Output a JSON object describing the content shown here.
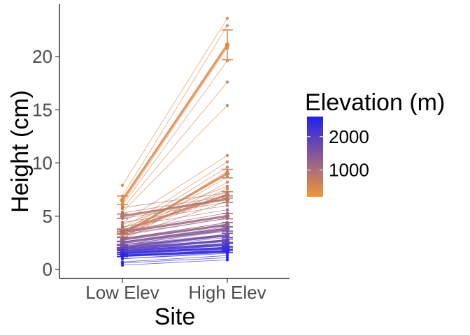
{
  "chart_data": {
    "type": "line",
    "xlabel": "Site",
    "ylabel": "Height (cm)",
    "categories": [
      "Low Elev",
      "High Elev"
    ],
    "ylim": [
      -1,
      24.5
    ],
    "y_ticks": [
      0,
      5,
      10,
      15,
      20
    ],
    "y_tick_labels": [
      "0",
      "5",
      "10",
      "15",
      "20"
    ],
    "grid": false,
    "legend": {
      "title": "Elevation (m)",
      "placement": "right",
      "type": "colorbar",
      "range": [
        200,
        2600
      ],
      "ticks": [
        2000,
        1000
      ],
      "tick_labels": [
        "2000",
        "1000"
      ],
      "color_low": "#f39637",
      "color_high": "#2020f0"
    },
    "groups": [
      {
        "elevation": 450,
        "low": 6.5,
        "high": 21.1,
        "low_se": 0.4,
        "high_se": 1.4,
        "individuals": [
          [
            7.9,
            23.6
          ],
          [
            6.9,
            22.9
          ],
          [
            6.6,
            21.0
          ],
          [
            6.2,
            20.8
          ],
          [
            6.0,
            19.6
          ],
          [
            5.7,
            17.6
          ],
          [
            5.4,
            15.4
          ]
        ]
      },
      {
        "elevation": 550,
        "low": 3.3,
        "high": 9.0,
        "low_se": 0.25,
        "high_se": 0.4,
        "individuals": [
          [
            4.4,
            10.7
          ],
          [
            3.8,
            10.1
          ],
          [
            3.5,
            9.6
          ],
          [
            3.2,
            9.2
          ],
          [
            2.9,
            8.7
          ],
          [
            2.7,
            8.2
          ],
          [
            3.1,
            7.6
          ]
        ]
      },
      {
        "elevation": 700,
        "low": 3.6,
        "high": 7.0,
        "low_se": 0.2,
        "high_se": 0.3,
        "individuals": [
          [
            4.2,
            7.8
          ],
          [
            3.9,
            7.3
          ],
          [
            3.4,
            6.8
          ],
          [
            3.0,
            6.4
          ],
          [
            3.7,
            7.1
          ]
        ]
      },
      {
        "elevation": 900,
        "low": 5.0,
        "high": 6.6,
        "low_se": 0.2,
        "high_se": 0.3,
        "individuals": [
          [
            5.8,
            7.2
          ],
          [
            5.3,
            6.9
          ],
          [
            4.8,
            6.3
          ],
          [
            4.4,
            6.0
          ],
          [
            5.1,
            6.6
          ]
        ]
      },
      {
        "elevation": 1100,
        "low": 3.5,
        "high": 5.0,
        "low_se": 0.2,
        "high_se": 0.25,
        "individuals": [
          [
            4.0,
            5.6
          ],
          [
            3.6,
            5.3
          ],
          [
            3.2,
            4.8
          ],
          [
            2.9,
            4.4
          ],
          [
            3.4,
            5.1
          ]
        ]
      },
      {
        "elevation": 1300,
        "low": 2.8,
        "high": 4.2,
        "low_se": 0.2,
        "high_se": 0.2,
        "individuals": [
          [
            3.3,
            4.8
          ],
          [
            2.9,
            4.4
          ],
          [
            2.6,
            4.0
          ],
          [
            2.3,
            3.7
          ],
          [
            2.8,
            4.1
          ]
        ]
      },
      {
        "elevation": 1500,
        "low": 2.5,
        "high": 3.8,
        "low_se": 0.15,
        "high_se": 0.2,
        "individuals": [
          [
            2.9,
            4.2
          ],
          [
            2.6,
            3.9
          ],
          [
            2.3,
            3.6
          ],
          [
            2.1,
            3.3
          ],
          [
            2.6,
            3.9
          ]
        ]
      },
      {
        "elevation": 1700,
        "low": 2.1,
        "high": 3.2,
        "low_se": 0.15,
        "high_se": 0.2,
        "individuals": [
          [
            2.6,
            3.6
          ],
          [
            2.3,
            3.3
          ],
          [
            2.0,
            3.0
          ],
          [
            1.7,
            2.8
          ],
          [
            2.1,
            3.2
          ]
        ]
      },
      {
        "elevation": 1900,
        "low": 1.9,
        "high": 2.7,
        "low_se": 0.15,
        "high_se": 0.15,
        "individuals": [
          [
            2.3,
            3.1
          ],
          [
            2.0,
            2.8
          ],
          [
            1.7,
            2.5
          ],
          [
            1.5,
            2.3
          ],
          [
            1.9,
            2.7
          ]
        ]
      },
      {
        "elevation": 2100,
        "low": 1.7,
        "high": 2.3,
        "low_se": 0.15,
        "high_se": 0.15,
        "individuals": [
          [
            2.1,
            2.7
          ],
          [
            1.8,
            2.4
          ],
          [
            1.5,
            2.1
          ],
          [
            1.2,
            1.9
          ],
          [
            1.7,
            2.3
          ]
        ]
      },
      {
        "elevation": 2300,
        "low": 1.5,
        "high": 2.0,
        "low_se": 0.1,
        "high_se": 0.1,
        "individuals": [
          [
            1.9,
            2.4
          ],
          [
            1.6,
            2.1
          ],
          [
            1.3,
            1.8
          ],
          [
            1.0,
            1.6
          ],
          [
            0.7,
            1.3
          ],
          [
            1.5,
            2.0
          ]
        ]
      },
      {
        "elevation": 2500,
        "low": 1.3,
        "high": 1.7,
        "low_se": 0.1,
        "high_se": 0.1,
        "individuals": [
          [
            1.6,
            2.0
          ],
          [
            1.3,
            1.7
          ],
          [
            1.0,
            1.5
          ],
          [
            0.6,
            1.1
          ],
          [
            0.4,
            0.9
          ],
          [
            1.2,
            1.6
          ]
        ]
      }
    ]
  }
}
